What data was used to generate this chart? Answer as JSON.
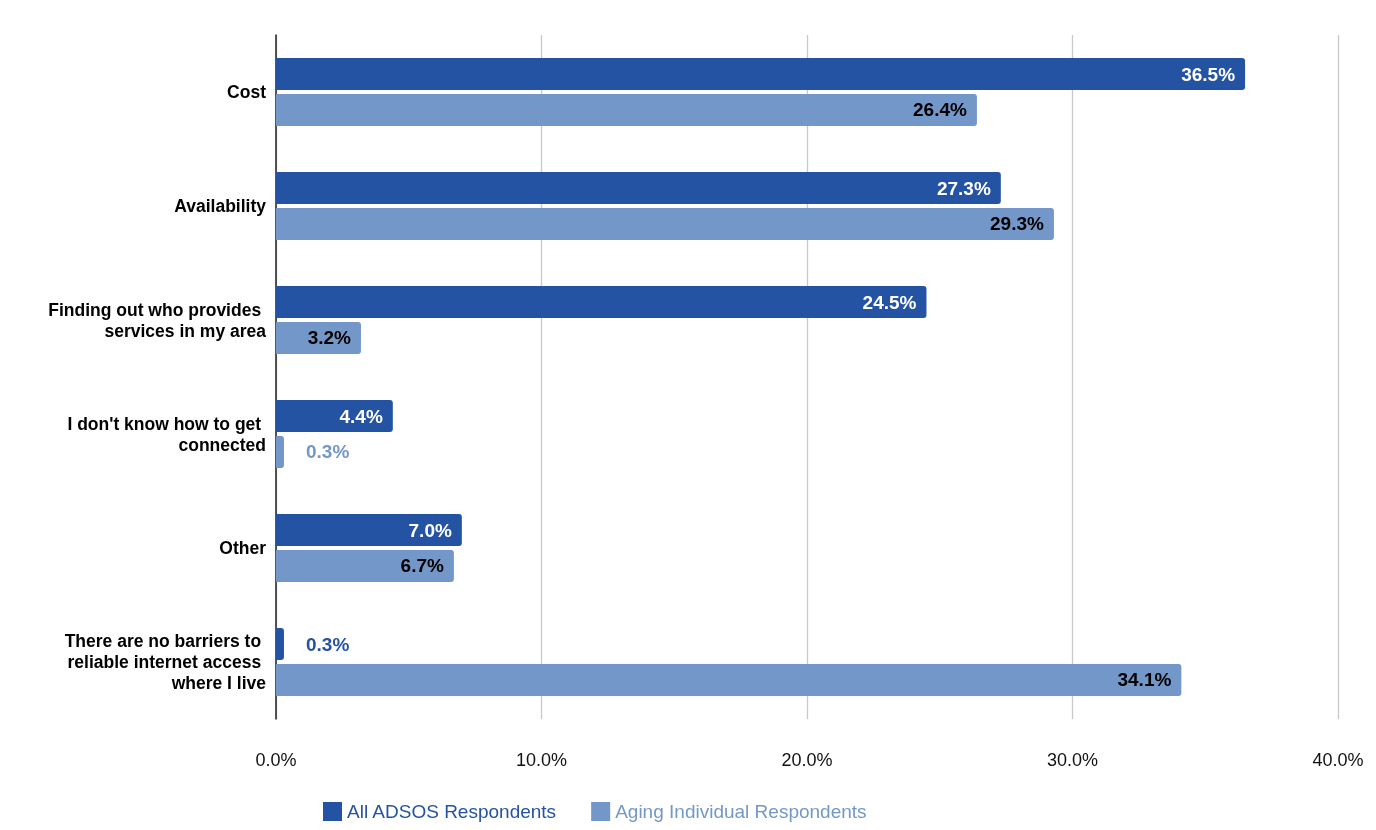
{
  "chart_data": {
    "type": "bar",
    "orientation": "horizontal",
    "categories": [
      "Cost",
      "Availability",
      "Finding out who provides services in my area",
      "I don't know how to get connected",
      "Other",
      "There are no barriers to reliable internet access where I live"
    ],
    "series": [
      {
        "name": "All ADSOS Respondents",
        "color": "#2453a3",
        "values": [
          36.5,
          27.3,
          24.5,
          4.4,
          7.0,
          0.3
        ],
        "value_labels": [
          "36.5%",
          "27.3%",
          "24.5%",
          "4.4%",
          "7.0%",
          "0.3%"
        ]
      },
      {
        "name": "Aging Individual Respondents",
        "color": "#7397c9",
        "values": [
          26.4,
          29.3,
          3.2,
          0.3,
          6.7,
          34.1
        ],
        "value_labels": [
          "26.4%",
          "29.3%",
          "3.2%",
          "0.3%",
          "6.7%",
          "34.1%"
        ]
      }
    ],
    "xlim": [
      0,
      40
    ],
    "xticks": [
      {
        "value": 0,
        "label": "0.0%"
      },
      {
        "value": 10,
        "label": "10.0%"
      },
      {
        "value": 20,
        "label": "20.0%"
      },
      {
        "value": 30,
        "label": "30.0%"
      },
      {
        "value": 40,
        "label": "40.0%"
      }
    ],
    "grid": "x",
    "legend": "bottom"
  }
}
